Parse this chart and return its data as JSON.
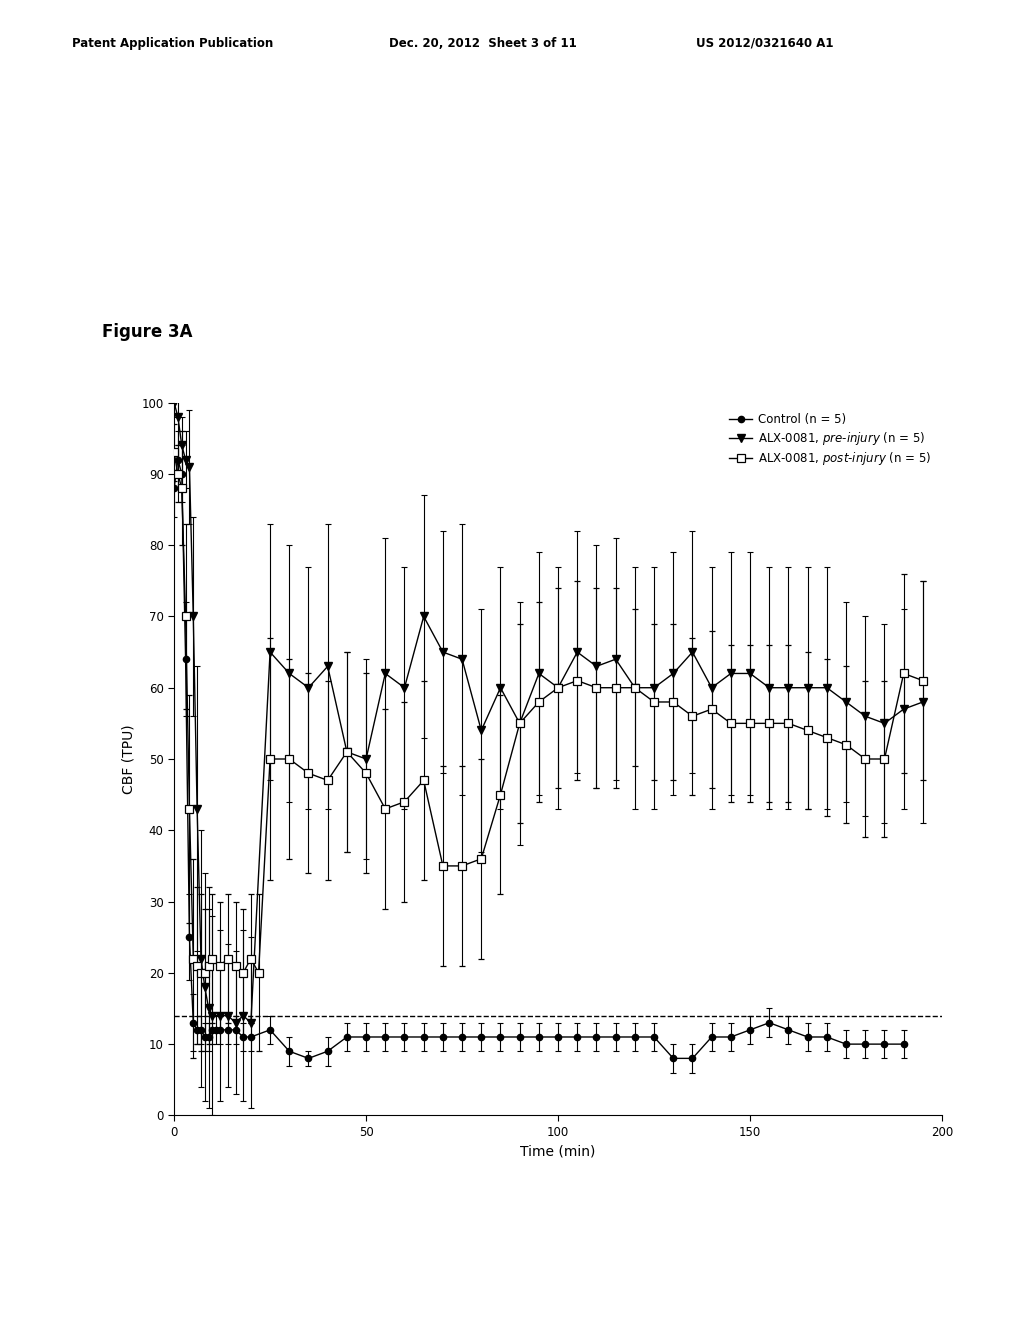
{
  "figure_label": "Figure 3A",
  "xlabel": "Time (min)",
  "ylabel": "CBF (TPU)",
  "xlim": [
    0,
    200
  ],
  "ylim": [
    0,
    100
  ],
  "yticks": [
    0,
    10,
    20,
    30,
    40,
    50,
    60,
    70,
    80,
    90,
    100
  ],
  "xticks": [
    0,
    50,
    100,
    150,
    200
  ],
  "dashed_line_y": 14,
  "legend_labels": [
    "Control (n = 5)",
    "ALX-0081, pre-injury (n = 5)",
    "ALX-0081, post-injury (n = 5)"
  ],
  "control_x": [
    0,
    1,
    2,
    3,
    4,
    5,
    6,
    7,
    8,
    9,
    10,
    11,
    12,
    14,
    16,
    18,
    20,
    25,
    30,
    35,
    40,
    45,
    50,
    55,
    60,
    65,
    70,
    75,
    80,
    85,
    90,
    95,
    100,
    105,
    110,
    115,
    120,
    125,
    130,
    135,
    140,
    145,
    150,
    155,
    160,
    165,
    170,
    175,
    180,
    185,
    190
  ],
  "control_y": [
    88,
    92,
    90,
    64,
    25,
    13,
    12,
    12,
    11,
    11,
    12,
    12,
    12,
    12,
    12,
    11,
    11,
    12,
    9,
    8,
    9,
    11,
    11,
    11,
    11,
    11,
    11,
    11,
    11,
    11,
    11,
    11,
    11,
    11,
    11,
    11,
    11,
    11,
    8,
    8,
    11,
    11,
    12,
    13,
    12,
    11,
    11,
    10,
    10,
    10,
    10
  ],
  "control_yerr": [
    4,
    4,
    4,
    8,
    6,
    4,
    2,
    2,
    2,
    2,
    2,
    2,
    2,
    2,
    2,
    2,
    2,
    2,
    2,
    1,
    2,
    2,
    2,
    2,
    2,
    2,
    2,
    2,
    2,
    2,
    2,
    2,
    2,
    2,
    2,
    2,
    2,
    2,
    2,
    2,
    2,
    2,
    2,
    2,
    2,
    2,
    2,
    2,
    2,
    2,
    2
  ],
  "pre_x": [
    0,
    1,
    2,
    3,
    4,
    5,
    6,
    7,
    8,
    9,
    10,
    12,
    14,
    16,
    18,
    20,
    25,
    30,
    35,
    40,
    45,
    50,
    55,
    60,
    65,
    70,
    75,
    80,
    85,
    90,
    95,
    100,
    105,
    110,
    115,
    120,
    125,
    130,
    135,
    140,
    145,
    150,
    155,
    160,
    165,
    170,
    175,
    180,
    185,
    190,
    195
  ],
  "pre_y": [
    100,
    98,
    94,
    92,
    91,
    70,
    43,
    22,
    18,
    15,
    14,
    14,
    14,
    13,
    14,
    13,
    65,
    62,
    60,
    63,
    51,
    50,
    62,
    60,
    70,
    65,
    64,
    54,
    60,
    55,
    62,
    60,
    65,
    63,
    64,
    60,
    60,
    62,
    65,
    60,
    62,
    62,
    60,
    60,
    60,
    60,
    58,
    56,
    55,
    57,
    58
  ],
  "pre_yerr": [
    2,
    4,
    4,
    4,
    8,
    14,
    20,
    18,
    16,
    14,
    14,
    12,
    10,
    10,
    12,
    12,
    18,
    18,
    17,
    20,
    14,
    14,
    19,
    17,
    17,
    17,
    19,
    17,
    17,
    17,
    17,
    17,
    17,
    17,
    17,
    17,
    17,
    17,
    17,
    17,
    17,
    17,
    17,
    17,
    17,
    17,
    14,
    14,
    14,
    14,
    17
  ],
  "post_x": [
    0,
    1,
    2,
    3,
    4,
    5,
    6,
    7,
    8,
    9,
    10,
    12,
    14,
    16,
    18,
    20,
    22,
    25,
    30,
    35,
    40,
    45,
    50,
    55,
    60,
    65,
    70,
    75,
    80,
    85,
    90,
    95,
    100,
    105,
    110,
    115,
    120,
    125,
    130,
    135,
    140,
    145,
    150,
    155,
    160,
    165,
    170,
    175,
    180,
    185,
    190,
    195
  ],
  "post_y": [
    93,
    90,
    88,
    70,
    43,
    22,
    21,
    20,
    20,
    21,
    22,
    21,
    22,
    21,
    20,
    22,
    20,
    50,
    50,
    48,
    47,
    51,
    48,
    43,
    44,
    47,
    35,
    35,
    36,
    45,
    55,
    58,
    60,
    61,
    60,
    60,
    60,
    58,
    58,
    56,
    57,
    55,
    55,
    55,
    55,
    54,
    53,
    52,
    50,
    50,
    62,
    61
  ],
  "post_yerr": [
    4,
    4,
    8,
    13,
    16,
    14,
    11,
    11,
    9,
    11,
    9,
    9,
    9,
    9,
    9,
    9,
    11,
    17,
    14,
    14,
    14,
    14,
    14,
    14,
    14,
    14,
    14,
    14,
    14,
    14,
    14,
    14,
    14,
    14,
    14,
    14,
    11,
    11,
    11,
    11,
    11,
    11,
    11,
    11,
    11,
    11,
    11,
    11,
    11,
    11,
    14,
    14
  ]
}
